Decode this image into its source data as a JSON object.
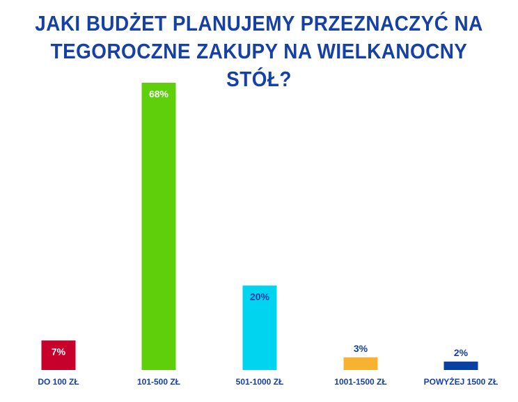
{
  "chart_data": {
    "type": "bar",
    "title_lines": [
      "JAKI BUDŻET PLANUJEMY PRZEZNACZYĆ NA",
      "TEGOROCZNE ZAKUPY NA WIELKANOCNY STÓŁ?"
    ],
    "categories": [
      "DO 100 ZŁ",
      "101-500 ZŁ",
      "501-1000 ZŁ",
      "1001-1500 ZŁ",
      "POWYŻEJ 1500 ZŁ"
    ],
    "values": [
      7,
      68,
      20,
      3,
      2
    ],
    "value_labels": [
      "7%",
      "68%",
      "20%",
      "3%",
      "2%"
    ],
    "ylim": [
      0,
      68
    ],
    "grid": false,
    "legend": "none",
    "colors": [
      "#c8002c",
      "#5fcf0b",
      "#00d4ef",
      "#f7b330",
      "#0741a3"
    ],
    "label_colors": [
      "#ffffff",
      "#ffffff",
      "#1540a8",
      "#1540a8",
      "#1540a8"
    ],
    "label_inside": [
      true,
      true,
      true,
      false,
      false
    ]
  }
}
